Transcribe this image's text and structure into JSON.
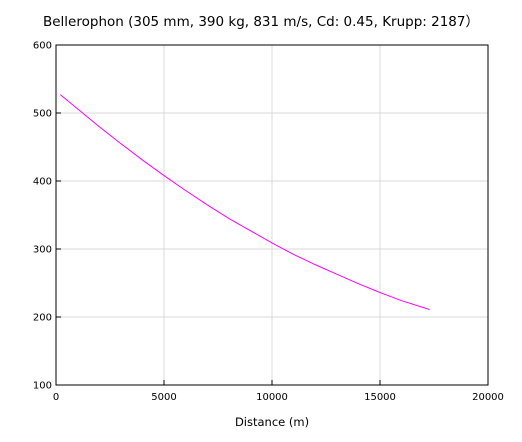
{
  "chart_data": {
    "type": "line",
    "title": "Bellerophon (305 mm, 390 kg, 831 m/s, Cd: 0.45, Krupp: 2187）",
    "xlabel": "Distance (m)",
    "ylabel": "",
    "xlim": [
      0,
      20000
    ],
    "ylim": [
      100,
      600
    ],
    "xticks": [
      0,
      5000,
      10000,
      15000,
      20000
    ],
    "yticks": [
      100,
      200,
      300,
      400,
      500,
      600
    ],
    "grid": true,
    "legend": "none",
    "series": [
      {
        "color": "#ff00ff",
        "x": [
          200,
          1000,
          2000,
          3000,
          4000,
          5000,
          6000,
          7000,
          8000,
          9000,
          10000,
          11000,
          12000,
          13000,
          14000,
          15000,
          16000,
          17300
        ],
        "y": [
          527,
          506,
          480,
          455,
          431,
          408,
          386,
          365,
          345,
          327,
          309,
          292,
          277,
          263,
          249,
          236,
          224,
          211
        ]
      }
    ]
  }
}
